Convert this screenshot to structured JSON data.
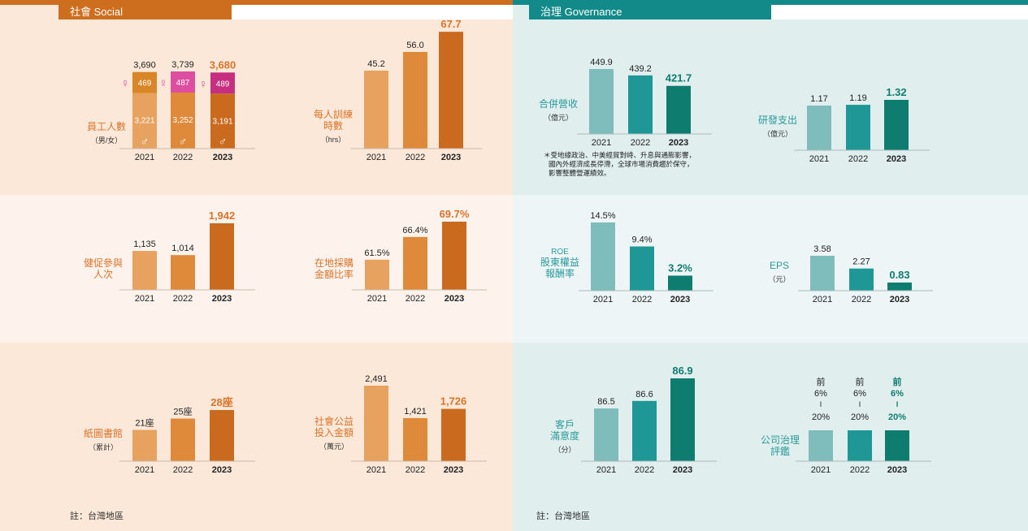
{
  "social": {
    "tab_label": "社會 Social",
    "note": "註：台灣地區",
    "colors": {
      "bar2021": "#e8a25f",
      "bar2022": "#df8a3a",
      "bar2023": "#c96a1e",
      "female2021": "#d98628",
      "female2022": "#dd4da0",
      "female2023": "#c62e7f",
      "label": "#d9742a",
      "axis": "#c9b8a8",
      "bg": "#fbe8d8",
      "bg_mid": "#fdf3ec",
      "tab": "#cd6e1f"
    }
  },
  "governance": {
    "tab_label": "治理 Governance",
    "note": "註：台灣地區",
    "revenue_note": [
      "＊受地緣政治、中美經貿對峙、升息與通膨影響，",
      "國內外經濟成長停滯，全球市場消費趨於保守，",
      "影響整體營運績效。"
    ],
    "colors": {
      "bar2021": "#7fbcbc",
      "bar2022": "#1f9797",
      "bar2023": "#0e7d70",
      "label": "#2a9a9a",
      "axis": "#a9b9b9",
      "bg": "#e1eeee",
      "bg_mid": "#eef5f7",
      "tab": "#138a8a"
    }
  },
  "chart_data": [
    {
      "id": "employees",
      "type": "bar",
      "stacked": true,
      "label": [
        "員工人數"
      ],
      "sublabel": "（男/女）",
      "categories": [
        "2021",
        "2022",
        "2023"
      ],
      "totals": [
        "3,690",
        "3,739",
        "3,680"
      ],
      "series": [
        {
          "values": [
            3221,
            3252,
            3191
          ],
          "labels": [
            "3,221",
            "3,252",
            "3,191"
          ],
          "symbol": "♂"
        },
        {
          "values": [
            469,
            487,
            489
          ],
          "labels": [
            "469",
            "487",
            "489"
          ],
          "symbol": "♀"
        }
      ]
    },
    {
      "id": "training-hours",
      "type": "bar",
      "label": [
        "每人訓練",
        "時數"
      ],
      "sublabel": "（hrs）",
      "categories": [
        "2021",
        "2022",
        "2023"
      ],
      "values": [
        45.2,
        56.0,
        67.7
      ],
      "value_labels": [
        "45.2",
        "56.0",
        "67.7"
      ]
    },
    {
      "id": "health",
      "type": "bar",
      "label": [
        "健促參與",
        "人次"
      ],
      "sublabel": "",
      "categories": [
        "2021",
        "2022",
        "2023"
      ],
      "values": [
        1135,
        1014,
        1942
      ],
      "value_labels": [
        "1,135",
        "1,014",
        "1,942"
      ]
    },
    {
      "id": "local-purchase",
      "type": "bar",
      "label": [
        "在地採購",
        "金額比率"
      ],
      "sublabel": "",
      "categories": [
        "2021",
        "2022",
        "2023"
      ],
      "values": [
        61.5,
        66.4,
        69.7
      ],
      "value_labels": [
        "61.5%",
        "66.4%",
        "69.7%"
      ]
    },
    {
      "id": "libraries",
      "type": "bar",
      "label": [
        "紙圖書館"
      ],
      "sublabel": "（累計）",
      "categories": [
        "2021",
        "2022",
        "2023"
      ],
      "values": [
        21,
        25,
        28
      ],
      "value_labels": [
        "21座",
        "25座",
        "28座"
      ]
    },
    {
      "id": "donations",
      "type": "bar",
      "label": [
        "社會公益",
        "投入金額"
      ],
      "sublabel": "（萬元）",
      "categories": [
        "2021",
        "2022",
        "2023"
      ],
      "values": [
        2491,
        1421,
        1726
      ],
      "value_labels": [
        "2,491",
        "1,421",
        "1,726"
      ]
    },
    {
      "id": "revenue",
      "type": "bar",
      "label": [
        "合併營收"
      ],
      "sublabel": "（億元）",
      "categories": [
        "2021",
        "2022",
        "2023"
      ],
      "values": [
        449.9,
        439.2,
        421.7
      ],
      "value_labels": [
        "449.9",
        "439.2",
        "421.7"
      ]
    },
    {
      "id": "rnd",
      "type": "bar",
      "label": [
        "研發支出"
      ],
      "sublabel": "（億元）",
      "categories": [
        "2021",
        "2022",
        "2023"
      ],
      "values": [
        1.17,
        1.19,
        1.32
      ],
      "value_labels": [
        "1.17",
        "1.19",
        "1.32"
      ]
    },
    {
      "id": "roe",
      "type": "bar",
      "label": [
        "股東權益",
        "報酬率"
      ],
      "prelabel": "ROE",
      "sublabel": "",
      "categories": [
        "2021",
        "2022",
        "2023"
      ],
      "values": [
        14.5,
        9.4,
        3.2
      ],
      "value_labels": [
        "14.5%",
        "9.4%",
        "3.2%"
      ]
    },
    {
      "id": "eps",
      "type": "bar",
      "label": [
        "EPS"
      ],
      "sublabel": "（元）",
      "categories": [
        "2021",
        "2022",
        "2023"
      ],
      "values": [
        3.58,
        2.27,
        0.83
      ],
      "value_labels": [
        "3.58",
        "2.27",
        "0.83"
      ]
    },
    {
      "id": "satisfaction",
      "type": "bar",
      "label": [
        "客戶",
        "滿意度"
      ],
      "sublabel": "（分）",
      "categories": [
        "2021",
        "2022",
        "2023"
      ],
      "values": [
        86.5,
        86.6,
        86.9
      ],
      "value_labels": [
        "86.5",
        "86.6",
        "86.9"
      ]
    },
    {
      "id": "governance-eval",
      "type": "bar",
      "label": [
        "公司治理",
        "評鑑"
      ],
      "sublabel": "",
      "categories": [
        "2021",
        "2022",
        "2023"
      ],
      "values": [
        1,
        1,
        1
      ],
      "value_labels": [
        [
          "前",
          "6%",
          "I",
          "20%"
        ],
        [
          "前",
          "6%",
          "I",
          "20%"
        ],
        [
          "前",
          "6%",
          "I",
          "20%"
        ]
      ]
    }
  ]
}
